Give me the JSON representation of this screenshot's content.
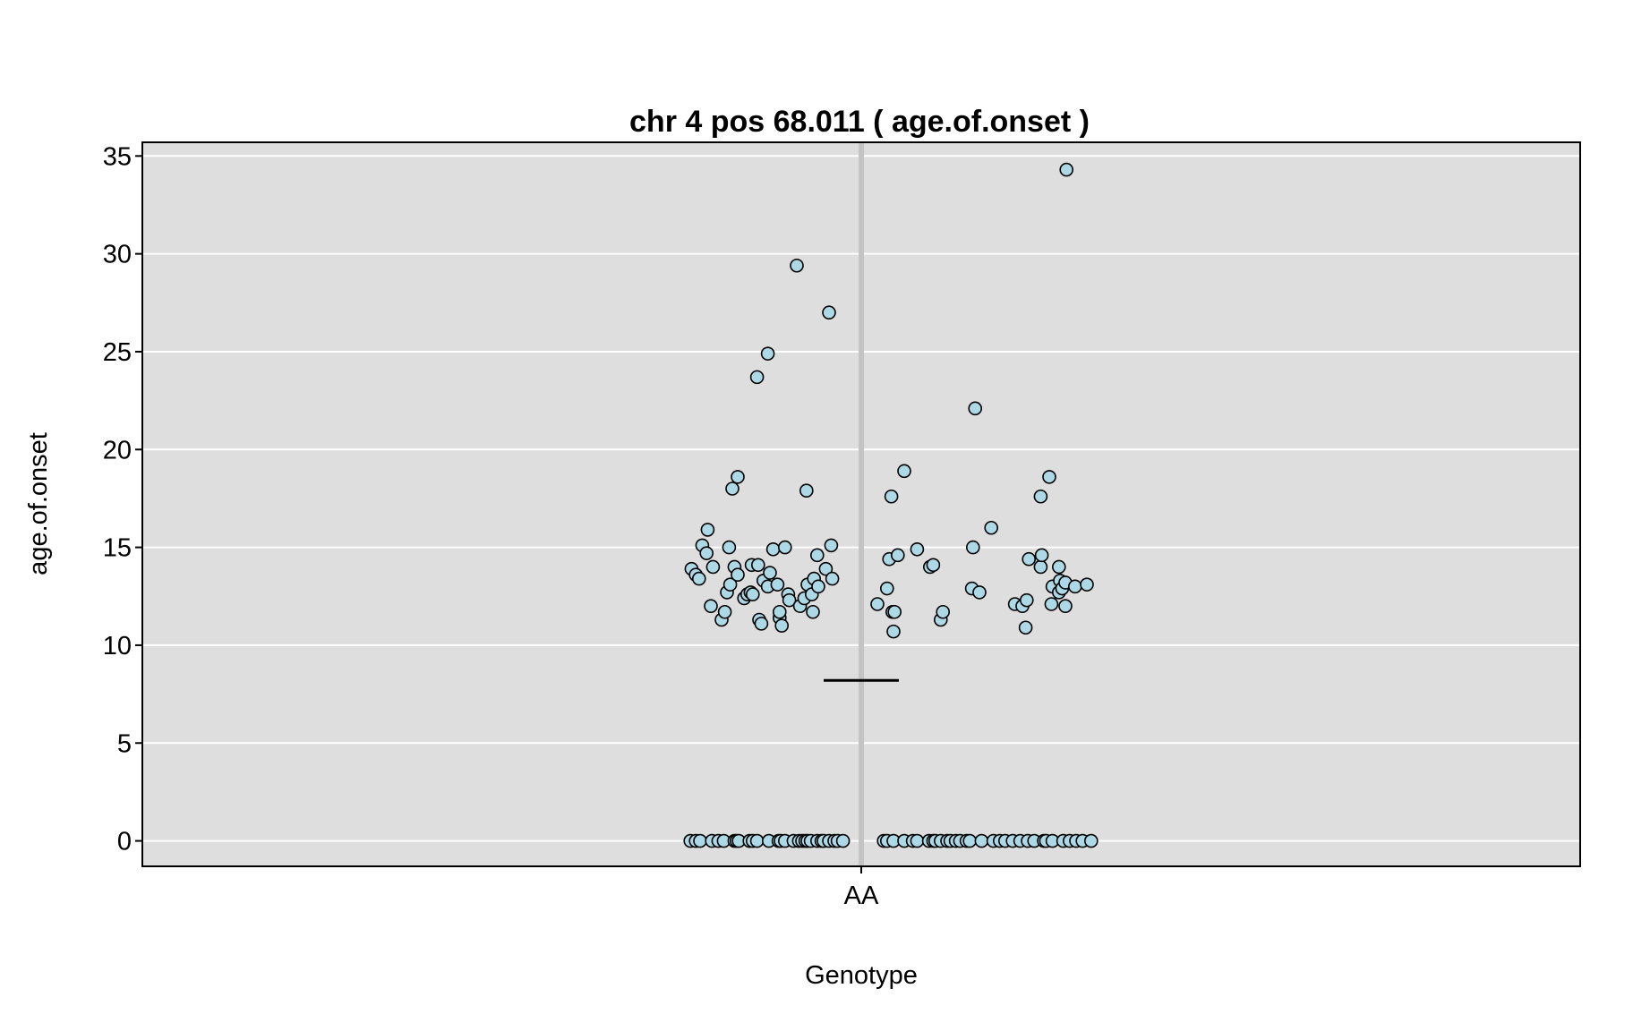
{
  "chart_data": {
    "type": "scatter",
    "title": "chr 4 pos 68.011 ( age.of.onset )",
    "xlabel": "Genotype",
    "ylabel": "age.of.onset",
    "categories": [
      "AA"
    ],
    "ylim": [
      -1.3,
      35.7
    ],
    "yticks": [
      0,
      5,
      10,
      15,
      20,
      25,
      30,
      35
    ],
    "grid": true,
    "background": "#dedede",
    "point_fill": "#add8e6",
    "point_stroke": "#000000",
    "jitter_range": [
      -0.16,
      0.16
    ],
    "mean_line": 8.2,
    "points": [
      {
        "x": -0.158,
        "y": 13.9
      },
      {
        "x": -0.154,
        "y": 13.6
      },
      {
        "x": -0.151,
        "y": 13.4
      },
      {
        "x": -0.148,
        "y": 15.1
      },
      {
        "x": -0.144,
        "y": 14.7
      },
      {
        "x": -0.143,
        "y": 15.9
      },
      {
        "x": -0.14,
        "y": 12.0
      },
      {
        "x": -0.138,
        "y": 14.0
      },
      {
        "x": -0.13,
        "y": 11.3
      },
      {
        "x": -0.127,
        "y": 11.7
      },
      {
        "x": -0.125,
        "y": 12.7
      },
      {
        "x": -0.123,
        "y": 15.0
      },
      {
        "x": -0.122,
        "y": 13.1
      },
      {
        "x": -0.12,
        "y": 18.0
      },
      {
        "x": -0.118,
        "y": 14.0
      },
      {
        "x": -0.115,
        "y": 18.6
      },
      {
        "x": -0.115,
        "y": 13.6
      },
      {
        "x": -0.109,
        "y": 12.4
      },
      {
        "x": -0.106,
        "y": 12.6
      },
      {
        "x": -0.103,
        "y": 12.7
      },
      {
        "x": -0.101,
        "y": 12.6
      },
      {
        "x": -0.102,
        "y": 14.1
      },
      {
        "x": -0.096,
        "y": 14.1
      },
      {
        "x": -0.097,
        "y": 23.7
      },
      {
        "x": -0.095,
        "y": 11.3
      },
      {
        "x": -0.093,
        "y": 11.1
      },
      {
        "x": -0.091,
        "y": 13.3
      },
      {
        "x": -0.087,
        "y": 24.9
      },
      {
        "x": -0.087,
        "y": 13.0
      },
      {
        "x": -0.085,
        "y": 13.7
      },
      {
        "x": -0.082,
        "y": 14.9
      },
      {
        "x": -0.078,
        "y": 13.1
      },
      {
        "x": -0.076,
        "y": 11.4
      },
      {
        "x": -0.076,
        "y": 11.7
      },
      {
        "x": -0.074,
        "y": 11.0
      },
      {
        "x": -0.071,
        "y": 15.0
      },
      {
        "x": -0.068,
        "y": 12.6
      },
      {
        "x": -0.067,
        "y": 12.3
      },
      {
        "x": -0.06,
        "y": 29.4
      },
      {
        "x": -0.057,
        "y": 12.0
      },
      {
        "x": -0.053,
        "y": 12.4
      },
      {
        "x": -0.051,
        "y": 17.9
      },
      {
        "x": -0.05,
        "y": 13.1
      },
      {
        "x": -0.046,
        "y": 12.6
      },
      {
        "x": -0.044,
        "y": 13.4
      },
      {
        "x": -0.045,
        "y": 11.7
      },
      {
        "x": -0.041,
        "y": 14.6
      },
      {
        "x": -0.04,
        "y": 13.0
      },
      {
        "x": -0.033,
        "y": 13.9
      },
      {
        "x": -0.03,
        "y": 27.0
      },
      {
        "x": -0.028,
        "y": 15.1
      },
      {
        "x": -0.027,
        "y": 13.4
      },
      {
        "x": 0.015,
        "y": 12.1
      },
      {
        "x": 0.024,
        "y": 12.9
      },
      {
        "x": 0.026,
        "y": 14.4
      },
      {
        "x": 0.028,
        "y": 17.6
      },
      {
        "x": 0.029,
        "y": 11.7
      },
      {
        "x": 0.031,
        "y": 11.7
      },
      {
        "x": 0.03,
        "y": 10.7
      },
      {
        "x": 0.034,
        "y": 14.6
      },
      {
        "x": 0.04,
        "y": 18.9
      },
      {
        "x": 0.052,
        "y": 14.9
      },
      {
        "x": 0.064,
        "y": 14.0
      },
      {
        "x": 0.067,
        "y": 14.1
      },
      {
        "x": 0.074,
        "y": 11.3
      },
      {
        "x": 0.076,
        "y": 11.7
      },
      {
        "x": 0.103,
        "y": 12.9
      },
      {
        "x": 0.104,
        "y": 15.0
      },
      {
        "x": 0.106,
        "y": 22.1
      },
      {
        "x": 0.11,
        "y": 12.7
      },
      {
        "x": 0.121,
        "y": 16.0
      },
      {
        "x": 0.143,
        "y": 12.1
      },
      {
        "x": 0.15,
        "y": 12.0
      },
      {
        "x": 0.154,
        "y": 12.3
      },
      {
        "x": 0.153,
        "y": 10.9
      },
      {
        "x": 0.156,
        "y": 14.4
      },
      {
        "x": 0.167,
        "y": 14.0
      },
      {
        "x": 0.167,
        "y": 17.6
      },
      {
        "x": 0.168,
        "y": 14.6
      },
      {
        "x": 0.175,
        "y": 18.6
      },
      {
        "x": 0.178,
        "y": 13.0
      },
      {
        "x": 0.177,
        "y": 12.1
      },
      {
        "x": 0.184,
        "y": 12.7
      },
      {
        "x": 0.184,
        "y": 14.0
      },
      {
        "x": 0.185,
        "y": 13.3
      },
      {
        "x": 0.187,
        "y": 12.9
      },
      {
        "x": 0.19,
        "y": 12.0
      },
      {
        "x": 0.19,
        "y": 13.2
      },
      {
        "x": 0.191,
        "y": 34.3
      },
      {
        "x": 0.199,
        "y": 13.0
      },
      {
        "x": 0.21,
        "y": 13.1
      },
      {
        "x": -0.159,
        "y": 0
      },
      {
        "x": -0.154,
        "y": 0
      },
      {
        "x": -0.15,
        "y": 0
      },
      {
        "x": -0.139,
        "y": 0
      },
      {
        "x": -0.133,
        "y": 0
      },
      {
        "x": -0.128,
        "y": 0
      },
      {
        "x": -0.118,
        "y": 0
      },
      {
        "x": -0.116,
        "y": 0
      },
      {
        "x": -0.114,
        "y": 0
      },
      {
        "x": -0.104,
        "y": 0
      },
      {
        "x": -0.101,
        "y": 0
      },
      {
        "x": -0.097,
        "y": 0
      },
      {
        "x": -0.086,
        "y": 0
      },
      {
        "x": -0.077,
        "y": 0
      },
      {
        "x": -0.075,
        "y": 0
      },
      {
        "x": -0.071,
        "y": 0
      },
      {
        "x": -0.063,
        "y": 0
      },
      {
        "x": -0.058,
        "y": 0
      },
      {
        "x": -0.055,
        "y": 0
      },
      {
        "x": -0.052,
        "y": 0
      },
      {
        "x": -0.05,
        "y": 0
      },
      {
        "x": -0.047,
        "y": 0
      },
      {
        "x": -0.041,
        "y": 0
      },
      {
        "x": -0.037,
        "y": 0
      },
      {
        "x": -0.035,
        "y": 0
      },
      {
        "x": -0.03,
        "y": 0
      },
      {
        "x": -0.025,
        "y": 0
      },
      {
        "x": -0.022,
        "y": 0
      },
      {
        "x": -0.017,
        "y": 0
      },
      {
        "x": 0.021,
        "y": 0
      },
      {
        "x": 0.024,
        "y": 0
      },
      {
        "x": 0.03,
        "y": 0
      },
      {
        "x": 0.04,
        "y": 0
      },
      {
        "x": 0.048,
        "y": 0
      },
      {
        "x": 0.052,
        "y": 0
      },
      {
        "x": 0.063,
        "y": 0
      },
      {
        "x": 0.067,
        "y": 0
      },
      {
        "x": 0.069,
        "y": 0
      },
      {
        "x": 0.074,
        "y": 0
      },
      {
        "x": 0.08,
        "y": 0
      },
      {
        "x": 0.083,
        "y": 0
      },
      {
        "x": 0.088,
        "y": 0
      },
      {
        "x": 0.092,
        "y": 0
      },
      {
        "x": 0.098,
        "y": 0
      },
      {
        "x": 0.101,
        "y": 0
      },
      {
        "x": 0.112,
        "y": 0
      },
      {
        "x": 0.123,
        "y": 0
      },
      {
        "x": 0.129,
        "y": 0
      },
      {
        "x": 0.134,
        "y": 0
      },
      {
        "x": 0.141,
        "y": 0
      },
      {
        "x": 0.148,
        "y": 0
      },
      {
        "x": 0.155,
        "y": 0
      },
      {
        "x": 0.161,
        "y": 0
      },
      {
        "x": 0.17,
        "y": 0
      },
      {
        "x": 0.172,
        "y": 0
      },
      {
        "x": 0.178,
        "y": 0
      },
      {
        "x": 0.188,
        "y": 0
      },
      {
        "x": 0.194,
        "y": 0
      },
      {
        "x": 0.2,
        "y": 0
      },
      {
        "x": 0.206,
        "y": 0
      },
      {
        "x": 0.214,
        "y": 0
      }
    ]
  }
}
